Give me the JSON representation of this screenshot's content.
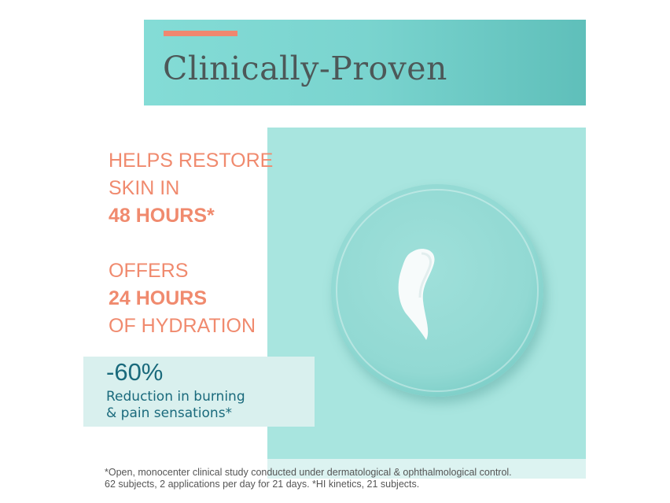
{
  "header": {
    "title": "Clinically-Proven"
  },
  "claims": [
    {
      "lines": [
        "HELPS RESTORE",
        "SKIN IN"
      ],
      "bold": "48 HOURS*"
    },
    {
      "line1": "OFFERS",
      "bold": "24 HOURS",
      "line3": "OF HYDRATION"
    }
  ],
  "stat": {
    "value": "-60%",
    "line1": "Reduction in burning",
    "line2": "& pain sensations*"
  },
  "footnote": {
    "line1": "*Open, monocenter clinical study conducted under dermatological & ophthalmological control.",
    "line2": "62 subjects, 2 applications per day for 21 days. *HI kinetics, 21 subjects."
  },
  "colors": {
    "accent": "#f08a6e",
    "teal": "#a8e5df",
    "stat_text": "#1a6a7c"
  }
}
